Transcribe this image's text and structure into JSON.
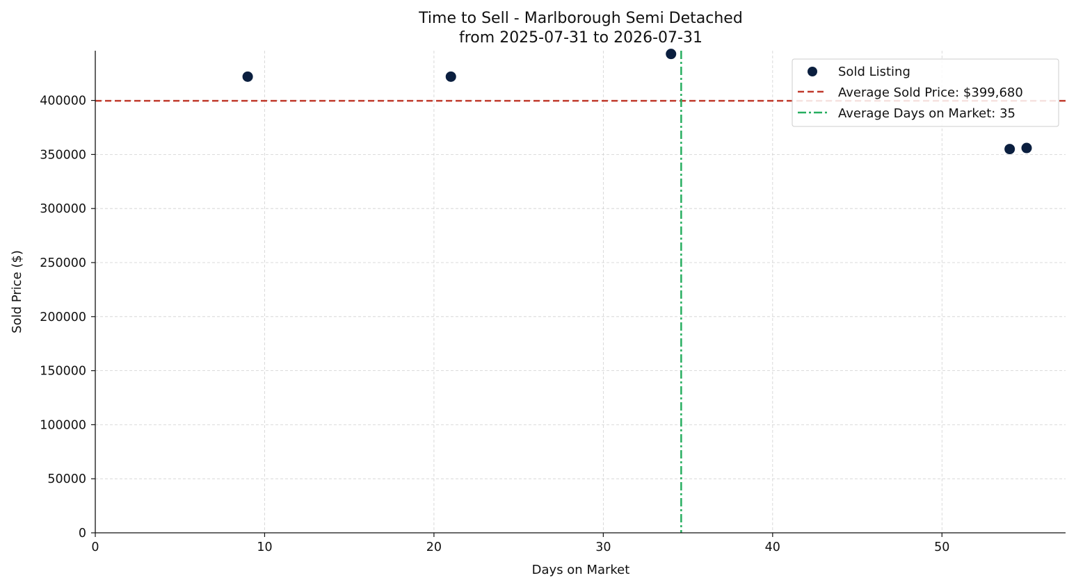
{
  "chart_data": {
    "type": "scatter",
    "title": "Time to Sell - Marlborough Semi Detached",
    "subtitle": "from 2025-07-31 to 2026-07-31",
    "xlabel": "Days on Market",
    "ylabel": "Sold Price ($)",
    "xlim": [
      0,
      57.3
    ],
    "ylim": [
      0,
      446000
    ],
    "xticks": [
      0,
      10,
      20,
      30,
      40,
      50
    ],
    "yticks": [
      0,
      50000,
      100000,
      150000,
      200000,
      250000,
      300000,
      350000,
      400000
    ],
    "grid": true,
    "legend_position": "top-right",
    "series": [
      {
        "name": "Sold Listing",
        "color": "#0b1f3f",
        "points": [
          {
            "x": 9,
            "y": 422000
          },
          {
            "x": 21,
            "y": 422000
          },
          {
            "x": 34,
            "y": 443000
          },
          {
            "x": 54,
            "y": 355000
          },
          {
            "x": 55,
            "y": 356000
          }
        ]
      }
    ],
    "reference_lines": [
      {
        "name": "Average Sold Price: $399,680",
        "orientation": "horizontal",
        "value": 399680,
        "color": "#c0392b",
        "style": "dashed"
      },
      {
        "name": "Average Days on Market: 35",
        "orientation": "vertical",
        "value": 34.6,
        "color": "#27ae60",
        "style": "dashdot"
      }
    ]
  }
}
